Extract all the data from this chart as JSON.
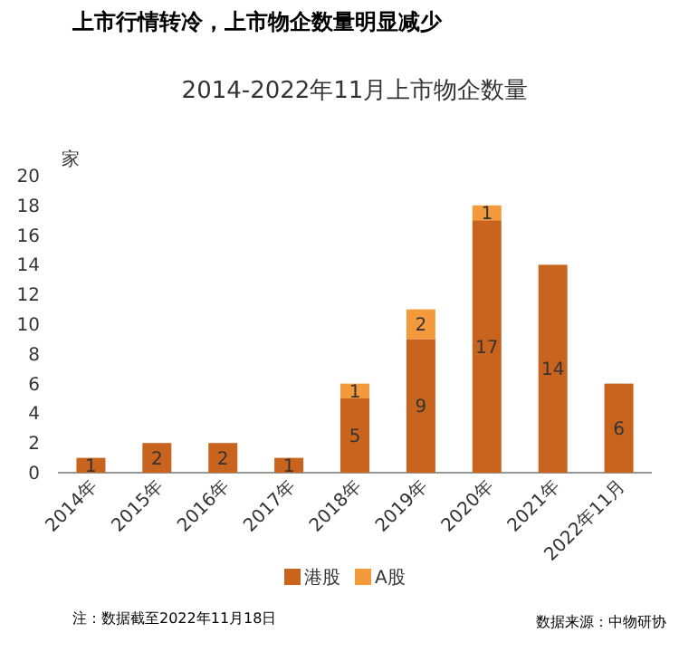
{
  "chart_data": {
    "type": "bar",
    "title": "上市行情转冷，上市物企数量明显减少",
    "subtitle": "2014-2022年11月上市物企数量",
    "ylabel": "家",
    "categories": [
      "2014年",
      "2015年",
      "2016年",
      "2017年",
      "2018年",
      "2019年",
      "2020年",
      "2021年",
      "2022年11月"
    ],
    "series": [
      {
        "name": "港股",
        "color": "#c8641e",
        "values": [
          1,
          2,
          2,
          1,
          5,
          9,
          17,
          14,
          6
        ]
      },
      {
        "name": "A股",
        "color": "#f39a3c",
        "values": [
          null,
          null,
          null,
          null,
          1,
          2,
          1,
          null,
          null
        ]
      }
    ],
    "stacked": true,
    "ylim": [
      0,
      20
    ],
    "yticks": [
      0,
      2,
      4,
      6,
      8,
      10,
      12,
      14,
      16,
      18,
      20
    ],
    "data_labels": true,
    "legend": "bottom",
    "annotations": [
      "注：数据截至2022年11月18日",
      "数据来源：中物研协"
    ]
  }
}
